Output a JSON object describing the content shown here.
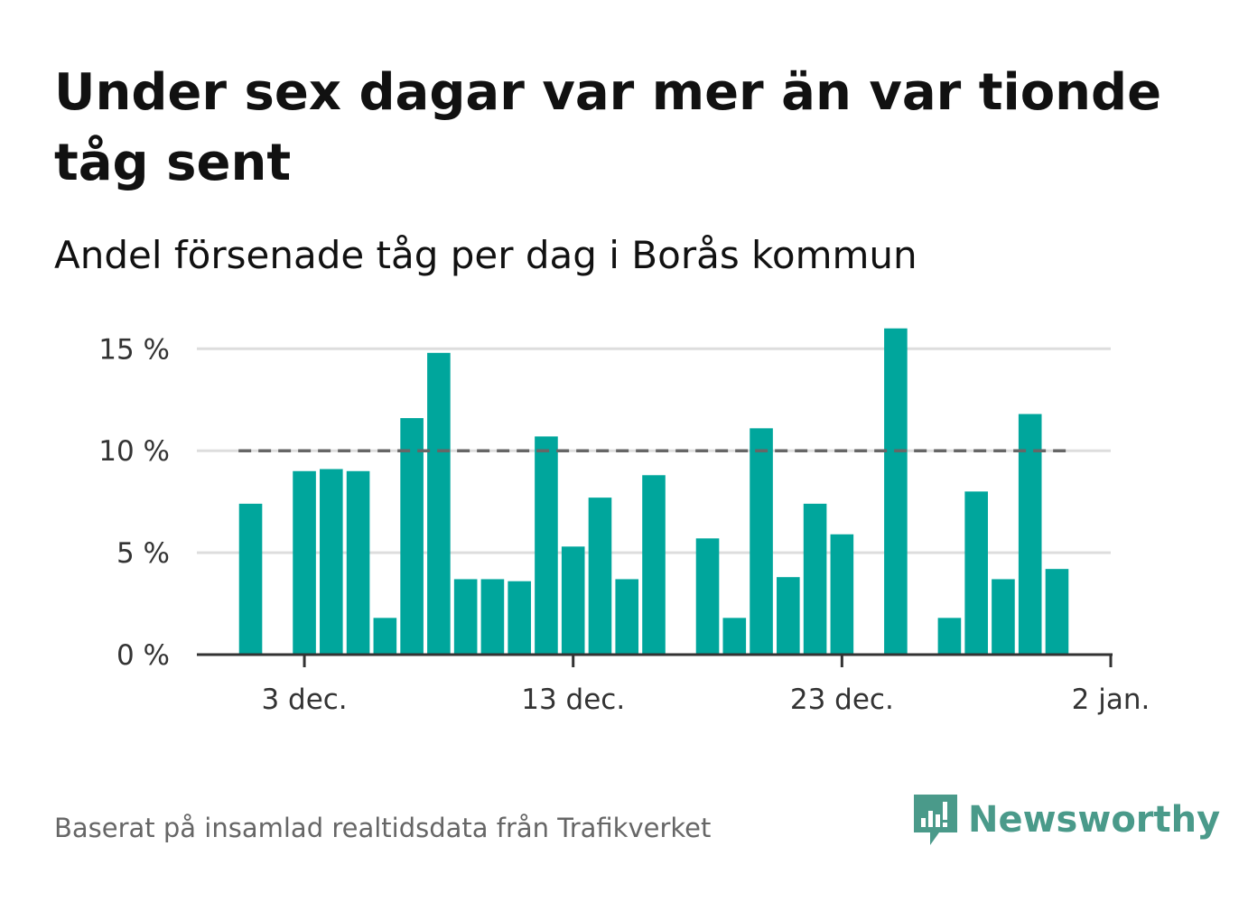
{
  "title": "Under sex dagar var mer än var tionde tåg sent",
  "subtitle": "Andel försenade tåg per dag i Borås kommun",
  "source": "Baserat på insamlad realtidsdata från Trafikverket",
  "brand": {
    "name": "Newsworthy",
    "icon": "newsworthy-logo-icon",
    "color": "#4a9a8a"
  },
  "colors": {
    "bar": "#00a69c",
    "grid": "#dddddd",
    "axis": "#333333",
    "reference_line": "#666666"
  },
  "chart_data": {
    "type": "bar",
    "title": "Under sex dagar var mer än var tionde tåg sent",
    "subtitle": "Andel försenade tåg per dag i Borås kommun",
    "x": [
      "2023-12-01",
      "2023-12-02",
      "2023-12-03",
      "2023-12-04",
      "2023-12-05",
      "2023-12-06",
      "2023-12-07",
      "2023-12-08",
      "2023-12-09",
      "2023-12-10",
      "2023-12-11",
      "2023-12-12",
      "2023-12-13",
      "2023-12-14",
      "2023-12-15",
      "2023-12-16",
      "2023-12-17",
      "2023-12-18",
      "2023-12-19",
      "2023-12-20",
      "2023-12-21",
      "2023-12-22",
      "2023-12-23",
      "2023-12-24",
      "2023-12-25",
      "2023-12-26",
      "2023-12-27",
      "2023-12-28",
      "2023-12-29",
      "2023-12-30",
      "2023-12-31"
    ],
    "values": [
      7.4,
      0,
      9.0,
      9.1,
      9.0,
      1.8,
      11.6,
      14.8,
      3.7,
      3.7,
      3.6,
      10.7,
      5.3,
      7.7,
      3.7,
      8.8,
      0,
      5.7,
      1.8,
      11.1,
      3.8,
      7.4,
      5.9,
      0,
      16.0,
      0,
      1.8,
      8.0,
      3.7,
      11.8,
      4.2
    ],
    "xlim": [
      "2023-11-29",
      "2024-01-02"
    ],
    "xticks": [
      {
        "value": "2023-12-03",
        "label": "3 dec."
      },
      {
        "value": "2023-12-13",
        "label": "13 dec."
      },
      {
        "value": "2023-12-23",
        "label": "23 dec."
      },
      {
        "value": "2024-01-02",
        "label": "2 jan."
      }
    ],
    "ylim": [
      0,
      15.5
    ],
    "yticks": [
      {
        "value": 0,
        "label": "0 %"
      },
      {
        "value": 5,
        "label": "5 %"
      },
      {
        "value": 10,
        "label": "10 %"
      },
      {
        "value": 15,
        "label": "15 %"
      }
    ],
    "reference_line": {
      "value": 10,
      "style": "dashed"
    },
    "grid": true,
    "legend": "none"
  }
}
